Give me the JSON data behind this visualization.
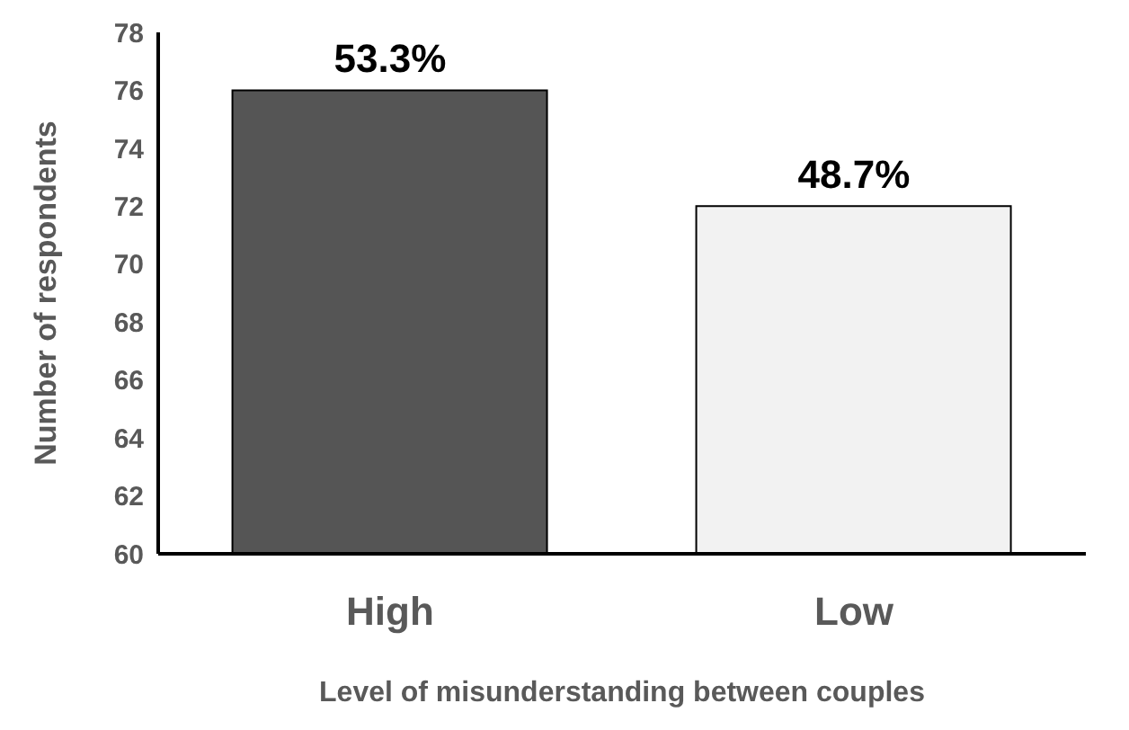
{
  "chart_data": {
    "type": "bar",
    "xlabel": "Level of misunderstanding between couples",
    "ylabel": "Number of respondents",
    "categories": [
      "High",
      "Low"
    ],
    "values": [
      76,
      72
    ],
    "colors": [
      "#555555",
      "#f2f2f2"
    ],
    "annotations": [
      {
        "text": "53.3%",
        "x": "High",
        "y": 76
      },
      {
        "text": "48.7%",
        "x": "Low",
        "y": 72
      }
    ],
    "ylim": [
      60,
      78
    ],
    "yticks": [
      60,
      62,
      64,
      66,
      68,
      70,
      72,
      74,
      76,
      78
    ],
    "grid": false,
    "legend": false
  }
}
